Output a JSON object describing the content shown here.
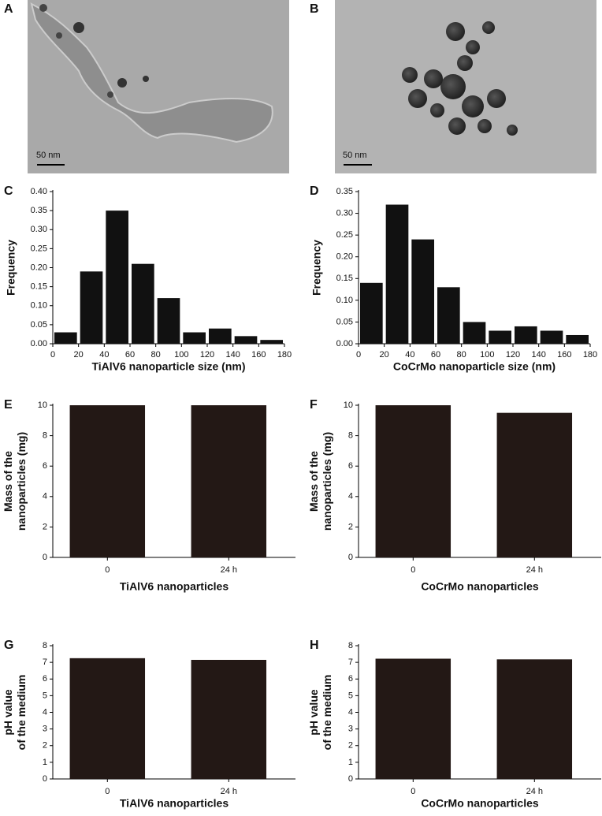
{
  "images": [
    {
      "label": "A",
      "scale_bar": "50 nm"
    },
    {
      "label": "B",
      "scale_bar": "50 nm"
    }
  ],
  "chart_data": [
    {
      "type": "histogram",
      "panel": "C",
      "xlabel": "TiAlV6 nanoparticle size (nm)",
      "ylabel": [
        "Frequency"
      ],
      "bins": [
        0,
        20,
        40,
        60,
        80,
        100,
        120,
        140,
        160,
        180
      ],
      "values": [
        0.03,
        0.19,
        0.35,
        0.21,
        0.12,
        0.03,
        0.04,
        0.02,
        0.01
      ],
      "color": "#111111",
      "xlim": [
        0,
        180
      ],
      "xticks": [
        0,
        20,
        40,
        60,
        80,
        100,
        120,
        140,
        160,
        180
      ],
      "ylim": [
        0,
        0.4
      ],
      "yticks": [
        {
          "value": 0,
          "label": "0.00"
        },
        {
          "value": 0.05,
          "label": "0.05"
        },
        {
          "value": 0.1,
          "label": "0.10"
        },
        {
          "value": 0.15,
          "label": "0.15"
        },
        {
          "value": 0.2,
          "label": "0.20"
        },
        {
          "value": 0.25,
          "label": "0.25"
        },
        {
          "value": 0.3,
          "label": "0.30"
        },
        {
          "value": 0.35,
          "label": "0.35"
        },
        {
          "value": 0.4,
          "label": "0.40"
        }
      ]
    },
    {
      "type": "histogram",
      "panel": "D",
      "xlabel": "CoCrMo nanoparticle size (nm)",
      "ylabel": [
        "Frequency"
      ],
      "bins": [
        0,
        20,
        40,
        60,
        80,
        100,
        120,
        140,
        160,
        180
      ],
      "values": [
        0.14,
        0.32,
        0.24,
        0.13,
        0.05,
        0.03,
        0.04,
        0.03,
        0.02
      ],
      "color": "#111111",
      "xlim": [
        0,
        180
      ],
      "xticks": [
        0,
        20,
        40,
        60,
        80,
        100,
        120,
        140,
        160,
        180
      ],
      "ylim": [
        0,
        0.35
      ],
      "yticks": [
        {
          "value": 0,
          "label": "0.00"
        },
        {
          "value": 0.05,
          "label": "0.05"
        },
        {
          "value": 0.1,
          "label": "0.10"
        },
        {
          "value": 0.15,
          "label": "0.15"
        },
        {
          "value": 0.2,
          "label": "0.20"
        },
        {
          "value": 0.25,
          "label": "0.25"
        },
        {
          "value": 0.3,
          "label": "0.30"
        },
        {
          "value": 0.35,
          "label": "0.35"
        }
      ]
    },
    {
      "type": "bar",
      "panel": "E",
      "xlabel": "TiAlV6 nanoparticles",
      "ylabel": [
        "Mass of the",
        "nanoparticles (mg)"
      ],
      "categories": [
        "0",
        "24 h"
      ],
      "values": [
        10,
        10
      ],
      "color": "#231815",
      "ylim": [
        0,
        10
      ],
      "yticks": [
        0,
        2,
        4,
        6,
        8,
        10
      ]
    },
    {
      "type": "bar",
      "panel": "F",
      "xlabel": "CoCrMo nanoparticles",
      "ylabel": [
        "Mass of the",
        "nanoparticles (mg)"
      ],
      "categories": [
        "0",
        "24 h"
      ],
      "values": [
        10,
        9.5
      ],
      "color": "#231815",
      "ylim": [
        0,
        10
      ],
      "yticks": [
        0,
        2,
        4,
        6,
        8,
        10
      ]
    },
    {
      "type": "bar",
      "panel": "G",
      "xlabel": "TiAlV6 nanoparticles",
      "ylabel": [
        "pH value",
        "of the medium"
      ],
      "categories": [
        "0",
        "24 h"
      ],
      "values": [
        7.25,
        7.15
      ],
      "color": "#231815",
      "ylim": [
        0,
        8
      ],
      "yticks": [
        0,
        1,
        2,
        3,
        4,
        5,
        6,
        7,
        8
      ]
    },
    {
      "type": "bar",
      "panel": "H",
      "xlabel": "CoCrMo nanoparticles",
      "ylabel": [
        "pH value",
        "of the medium"
      ],
      "categories": [
        "0",
        "24 h"
      ],
      "values": [
        7.22,
        7.18
      ],
      "color": "#231815",
      "ylim": [
        0,
        8
      ],
      "yticks": [
        0,
        1,
        2,
        3,
        4,
        5,
        6,
        7,
        8
      ]
    }
  ]
}
